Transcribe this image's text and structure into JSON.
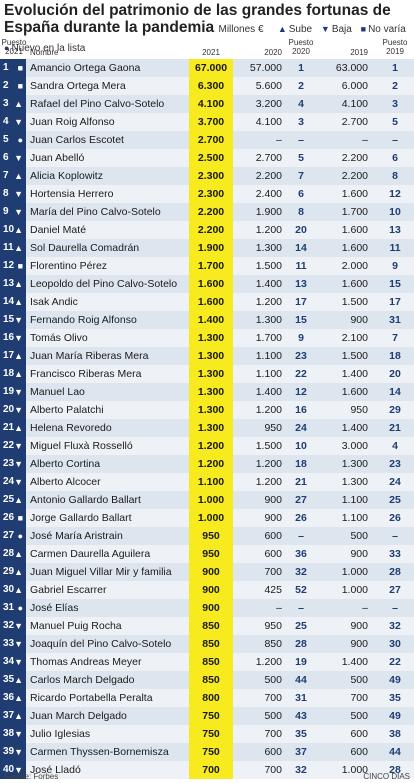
{
  "header": {
    "title": "Evolución del patrimonio de las grandes fortunas de España durante la pandemia",
    "unit": "Millones €",
    "legend": [
      {
        "icon": "triangle-up-icon",
        "symbol": "▲",
        "label": "Sube"
      },
      {
        "icon": "triangle-down-icon",
        "symbol": "▼",
        "label": "Baja"
      },
      {
        "icon": "square-icon",
        "symbol": "■",
        "label": "No varía"
      },
      {
        "icon": "circle-icon",
        "symbol": "●",
        "label": "Nuevo en la lista"
      }
    ]
  },
  "columns": {
    "rank2021": "Puesto 2021",
    "name": "Nombre",
    "v2021": "2021",
    "v2020": "2020",
    "rank2020": "Puesto 2020",
    "v2019": "2019",
    "rank2019": "Puesto 2019"
  },
  "chart_data": {
    "type": "table",
    "title": "Evolución del patrimonio de las grandes fortunas de España durante la pandemia",
    "unit": "Millones €",
    "status_legend": {
      "up": "Sube",
      "down": "Baja",
      "same": "No varía",
      "new": "Nuevo en la lista"
    },
    "rows": [
      {
        "rank": "1",
        "status": "same",
        "name": "Amancio Ortega Gaona",
        "v2021": "67.000",
        "v2020": "57.000",
        "rank2020": "1",
        "v2019": "63.000",
        "rank2019": "1"
      },
      {
        "rank": "2",
        "status": "same",
        "name": "Sandra Ortega Mera",
        "v2021": "6.300",
        "v2020": "5.600",
        "rank2020": "2",
        "v2019": "6.000",
        "rank2019": "2"
      },
      {
        "rank": "3",
        "status": "up",
        "name": "Rafael del Pino Calvo-Sotelo",
        "v2021": "4.100",
        "v2020": "3.200",
        "rank2020": "4",
        "v2019": "4.100",
        "rank2019": "3"
      },
      {
        "rank": "4",
        "status": "down",
        "name": "Juan Roig Alfonso",
        "v2021": "3.700",
        "v2020": "4.100",
        "rank2020": "3",
        "v2019": "2.700",
        "rank2019": "5"
      },
      {
        "rank": "5",
        "status": "new",
        "name": "Juan Carlos Escotet",
        "v2021": "2.700",
        "v2020": "–",
        "rank2020": "–",
        "v2019": "–",
        "rank2019": "–"
      },
      {
        "rank": "6",
        "status": "down",
        "name": "Juan Abelló",
        "v2021": "2.500",
        "v2020": "2.700",
        "rank2020": "5",
        "v2019": "2.200",
        "rank2019": "6"
      },
      {
        "rank": "7",
        "status": "up",
        "name": "Alicia Koplowitz",
        "v2021": "2.300",
        "v2020": "2.200",
        "rank2020": "7",
        "v2019": "2.200",
        "rank2019": "8"
      },
      {
        "rank": "8",
        "status": "down",
        "name": "Hortensia Herrero",
        "v2021": "2.300",
        "v2020": "2.400",
        "rank2020": "6",
        "v2019": "1.600",
        "rank2019": "12"
      },
      {
        "rank": "9",
        "status": "down",
        "name": "María del Pino Calvo-Sotelo",
        "v2021": "2.200",
        "v2020": "1.900",
        "rank2020": "8",
        "v2019": "1.700",
        "rank2019": "10"
      },
      {
        "rank": "10",
        "status": "up",
        "name": "Daniel Maté",
        "v2021": "2.200",
        "v2020": "1.200",
        "rank2020": "20",
        "v2019": "1.600",
        "rank2019": "13"
      },
      {
        "rank": "11",
        "status": "up",
        "name": "Sol Daurella Comadrán",
        "v2021": "1.900",
        "v2020": "1.300",
        "rank2020": "14",
        "v2019": "1.600",
        "rank2019": "11"
      },
      {
        "rank": "12",
        "status": "same",
        "name": "Florentino Pérez",
        "v2021": "1.700",
        "v2020": "1.500",
        "rank2020": "11",
        "v2019": "2.000",
        "rank2019": "9"
      },
      {
        "rank": "13",
        "status": "up",
        "name": "Leopoldo del Pino Calvo-Sotelo",
        "v2021": "1.600",
        "v2020": "1.400",
        "rank2020": "13",
        "v2019": "1.600",
        "rank2019": "15"
      },
      {
        "rank": "14",
        "status": "up",
        "name": "Isak Andic",
        "v2021": "1.600",
        "v2020": "1.200",
        "rank2020": "17",
        "v2019": "1.500",
        "rank2019": "17"
      },
      {
        "rank": "15",
        "status": "down",
        "name": "Fernando Roig Alfonso",
        "v2021": "1.400",
        "v2020": "1.300",
        "rank2020": "15",
        "v2019": "900",
        "rank2019": "31"
      },
      {
        "rank": "16",
        "status": "down",
        "name": "Tomás Olivo",
        "v2021": "1.300",
        "v2020": "1.700",
        "rank2020": "9",
        "v2019": "2.100",
        "rank2019": "7"
      },
      {
        "rank": "17",
        "status": "up",
        "name": "Juan María Riberas Mera",
        "v2021": "1.300",
        "v2020": "1.100",
        "rank2020": "23",
        "v2019": "1.500",
        "rank2019": "18"
      },
      {
        "rank": "18",
        "status": "up",
        "name": "Francisco Riberas Mera",
        "v2021": "1.300",
        "v2020": "1.100",
        "rank2020": "22",
        "v2019": "1.400",
        "rank2019": "20"
      },
      {
        "rank": "19",
        "status": "down",
        "name": "Manuel Lao",
        "v2021": "1.300",
        "v2020": "1.400",
        "rank2020": "12",
        "v2019": "1.600",
        "rank2019": "14"
      },
      {
        "rank": "20",
        "status": "down",
        "name": "Alberto Palatchi",
        "v2021": "1.300",
        "v2020": "1.200",
        "rank2020": "16",
        "v2019": "950",
        "rank2019": "29"
      },
      {
        "rank": "21",
        "status": "up",
        "name": "Helena Revoredo",
        "v2021": "1.300",
        "v2020": "950",
        "rank2020": "24",
        "v2019": "1.400",
        "rank2019": "21"
      },
      {
        "rank": "22",
        "status": "down",
        "name": "Miguel Fluxà Rosselló",
        "v2021": "1.200",
        "v2020": "1.500",
        "rank2020": "10",
        "v2019": "3.000",
        "rank2019": "4"
      },
      {
        "rank": "23",
        "status": "down",
        "name": "Alberto Cortina",
        "v2021": "1.200",
        "v2020": "1.200",
        "rank2020": "18",
        "v2019": "1.300",
        "rank2019": "23"
      },
      {
        "rank": "24",
        "status": "down",
        "name": "Alberto Alcocer",
        "v2021": "1.100",
        "v2020": "1.200",
        "rank2020": "21",
        "v2019": "1.300",
        "rank2019": "24"
      },
      {
        "rank": "25",
        "status": "up",
        "name": "Antonio Gallardo Ballart",
        "v2021": "1.000",
        "v2020": "900",
        "rank2020": "27",
        "v2019": "1.100",
        "rank2019": "25"
      },
      {
        "rank": "26",
        "status": "same",
        "name": "Jorge Gallardo Ballart",
        "v2021": "1.000",
        "v2020": "900",
        "rank2020": "26",
        "v2019": "1.100",
        "rank2019": "26"
      },
      {
        "rank": "27",
        "status": "new",
        "name": "José María Aristrain",
        "v2021": "950",
        "v2020": "600",
        "rank2020": "–",
        "v2019": "500",
        "rank2019": "–"
      },
      {
        "rank": "28",
        "status": "up",
        "name": "Carmen Daurella Aguilera",
        "v2021": "950",
        "v2020": "600",
        "rank2020": "36",
        "v2019": "900",
        "rank2019": "33"
      },
      {
        "rank": "29",
        "status": "up",
        "name": "Juan Miguel Villar Mir y familia",
        "v2021": "900",
        "v2020": "700",
        "rank2020": "32",
        "v2019": "1.000",
        "rank2019": "28"
      },
      {
        "rank": "30",
        "status": "up",
        "name": "Gabriel Escarrer",
        "v2021": "900",
        "v2020": "425",
        "rank2020": "52",
        "v2019": "1.000",
        "rank2019": "27"
      },
      {
        "rank": "31",
        "status": "new",
        "name": "José Elías",
        "v2021": "900",
        "v2020": "–",
        "rank2020": "–",
        "v2019": "–",
        "rank2019": "–"
      },
      {
        "rank": "32",
        "status": "down",
        "name": "Manuel Puig Rocha",
        "v2021": "850",
        "v2020": "950",
        "rank2020": "25",
        "v2019": "900",
        "rank2019": "32"
      },
      {
        "rank": "33",
        "status": "down",
        "name": "Joaquín del Pino Calvo-Sotelo",
        "v2021": "850",
        "v2020": "850",
        "rank2020": "28",
        "v2019": "900",
        "rank2019": "30"
      },
      {
        "rank": "34",
        "status": "down",
        "name": "Thomas Andreas Meyer",
        "v2021": "850",
        "v2020": "1.200",
        "rank2020": "19",
        "v2019": "1.400",
        "rank2019": "22"
      },
      {
        "rank": "35",
        "status": "up",
        "name": "Carlos March Delgado",
        "v2021": "850",
        "v2020": "500",
        "rank2020": "44",
        "v2019": "500",
        "rank2019": "49"
      },
      {
        "rank": "36",
        "status": "up",
        "name": "Ricardo Portabella Peralta",
        "v2021": "800",
        "v2020": "700",
        "rank2020": "31",
        "v2019": "700",
        "rank2019": "35"
      },
      {
        "rank": "37",
        "status": "up",
        "name": "Juan March Delgado",
        "v2021": "750",
        "v2020": "500",
        "rank2020": "43",
        "v2019": "500",
        "rank2019": "49"
      },
      {
        "rank": "38",
        "status": "down",
        "name": "Julio Iglesias",
        "v2021": "750",
        "v2020": "700",
        "rank2020": "35",
        "v2019": "600",
        "rank2019": "38"
      },
      {
        "rank": "39",
        "status": "down",
        "name": "Carmen Thyssen-Bornemisza",
        "v2021": "750",
        "v2020": "600",
        "rank2020": "37",
        "v2019": "600",
        "rank2019": "44"
      },
      {
        "rank": "40",
        "status": "down",
        "name": "José Lladó",
        "v2021": "700",
        "v2020": "700",
        "rank2020": "32",
        "v2019": "1.000",
        "rank2019": "28"
      }
    ]
  },
  "footer": {
    "source": "Fuente: Forbes",
    "credit": "CINCO DÍAS"
  }
}
